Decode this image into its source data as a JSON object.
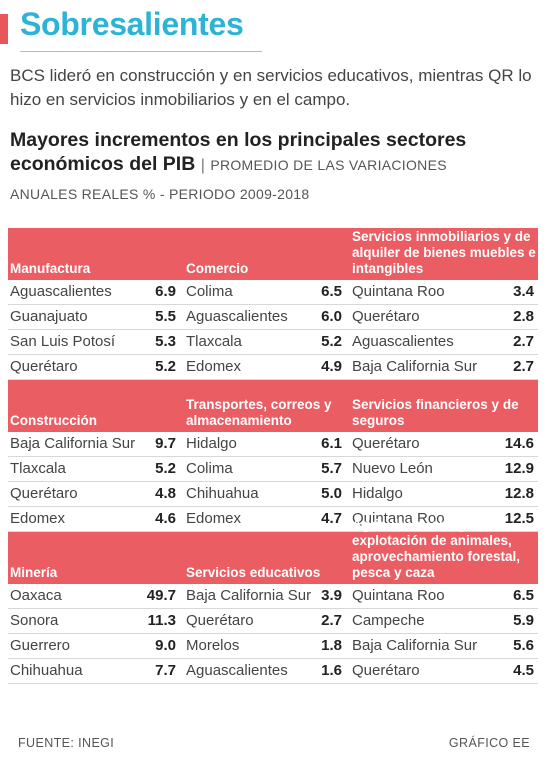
{
  "colors": {
    "accent": "#2cb4d6",
    "header_bg": "#ea5d63",
    "marker": "#e8555b"
  },
  "title": "Sobresalientes",
  "intro": "BCS lideró en construcción y en servicios educativos, mientras QR lo hizo en servicios inmobiliarios y en el campo.",
  "headline": {
    "main": "Mayores incrementos en los principales sectores económicos del PIB",
    "separator": "|",
    "sub": "PROMEDIO DE LAS VARIACIONES",
    "sub2": "ANUALES REALES % - PERIODO 2009-2018"
  },
  "blocks": [
    {
      "sectors": [
        {
          "name": "Manufactura",
          "rows": [
            {
              "state": "Aguascalientes",
              "value": "6.9"
            },
            {
              "state": "Guanajuato",
              "value": "5.5"
            },
            {
              "state": "San Luis Potosí",
              "value": "5.3"
            },
            {
              "state": "Querétaro",
              "value": "5.2"
            }
          ]
        },
        {
          "name": "Comercio",
          "rows": [
            {
              "state": "Colima",
              "value": "6.5"
            },
            {
              "state": "Aguascalientes",
              "value": "6.0"
            },
            {
              "state": "Tlaxcala",
              "value": "5.2"
            },
            {
              "state": "Edomex",
              "value": "4.9"
            }
          ]
        },
        {
          "name": "Servicios inmobiliarios y de alquiler de bienes muebles e intangibles",
          "rows": [
            {
              "state": "Quintana Roo",
              "value": "3.4"
            },
            {
              "state": "Querétaro",
              "value": "2.8"
            },
            {
              "state": "Aguascalientes",
              "value": "2.7"
            },
            {
              "state": "Baja California Sur",
              "value": "2.7"
            }
          ]
        }
      ]
    },
    {
      "sectors": [
        {
          "name": "Construcción",
          "rows": [
            {
              "state": "Baja California Sur",
              "value": "9.7"
            },
            {
              "state": "Tlaxcala",
              "value": "5.2"
            },
            {
              "state": "Querétaro",
              "value": "4.8"
            },
            {
              "state": "Edomex",
              "value": "4.6"
            }
          ]
        },
        {
          "name": "Transportes, correos y almacenamiento",
          "rows": [
            {
              "state": "Hidalgo",
              "value": "6.1"
            },
            {
              "state": "Colima",
              "value": "5.7"
            },
            {
              "state": "Chihuahua",
              "value": "5.0"
            },
            {
              "state": "Edomex",
              "value": "4.7"
            }
          ]
        },
        {
          "name": "Servicios financieros y de seguros",
          "rows": [
            {
              "state": "Querétaro",
              "value": "14.6"
            },
            {
              "state": "Nuevo León",
              "value": "12.9"
            },
            {
              "state": "Hidalgo",
              "value": "12.8"
            },
            {
              "state": "Quintana Roo",
              "value": "12.5"
            }
          ]
        }
      ]
    },
    {
      "sectors": [
        {
          "name": "Minería",
          "rows": [
            {
              "state": "Oaxaca",
              "value": "49.7"
            },
            {
              "state": "Sonora",
              "value": "11.3"
            },
            {
              "state": "Guerrero",
              "value": "9.0"
            },
            {
              "state": "Chihuahua",
              "value": "7.7"
            }
          ]
        },
        {
          "name": "Servicios educativos",
          "rows": [
            {
              "state": "Baja California Sur",
              "value": "3.9"
            },
            {
              "state": "Querétaro",
              "value": "2.7"
            },
            {
              "state": "Morelos",
              "value": "1.8"
            },
            {
              "state": "Aguascalientes",
              "value": "1.6"
            }
          ]
        },
        {
          "name": "Agricultura, cria y explotación de animales, aprovechamiento forestal, pesca y caza",
          "rows": [
            {
              "state": "Quintana Roo",
              "value": "6.5"
            },
            {
              "state": "Campeche",
              "value": "5.9"
            },
            {
              "state": "Baja California Sur",
              "value": "5.6"
            },
            {
              "state": "Querétaro",
              "value": "4.5"
            }
          ]
        }
      ]
    }
  ],
  "footer": {
    "source": "FUENTE: INEGI",
    "credit": "GRÁFICO EE"
  }
}
